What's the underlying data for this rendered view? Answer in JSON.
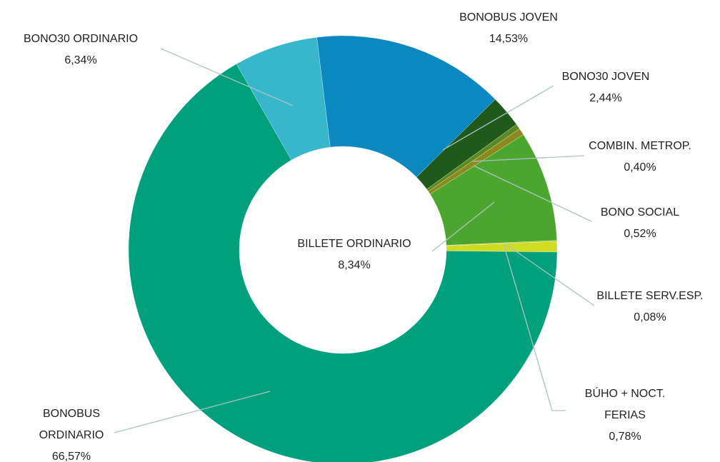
{
  "chart_data": {
    "type": "donut",
    "categories": [
      "BONO30 ORDINARIO",
      "BONOBUS JOVEN",
      "BONO30 JOVEN",
      "COMBIN. METROP.",
      "BONO SOCIAL",
      "BILLETE ORDINARIO",
      "BILLETE SERV.ESP.",
      "BÚHO + NOCT. FERIAS",
      "BONOBUS ORDINARIO"
    ],
    "values": [
      6.34,
      14.53,
      2.44,
      0.4,
      0.52,
      8.34,
      0.08,
      0.78,
      66.57
    ],
    "value_labels": [
      "6,34%",
      "14,53%",
      "2,44%",
      "0,40%",
      "0,52%",
      "8,34%",
      "0,08%",
      "0,78%",
      "66,57%"
    ],
    "colors": [
      "#38b6cb",
      "#0b88c0",
      "#1f5a1c",
      "#5b8a22",
      "#8c8a1e",
      "#4ba52e",
      "#a9c21e",
      "#cfdc22",
      "#00a07c"
    ]
  }
}
